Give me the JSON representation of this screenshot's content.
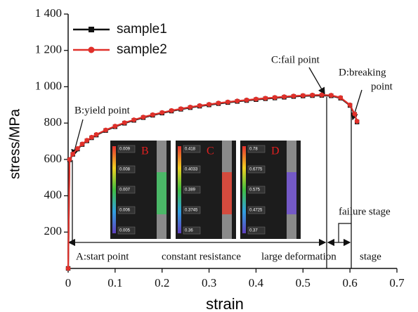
{
  "chart_data": {
    "type": "line",
    "xlabel": "strain",
    "ylabel": "stress/MPa",
    "xlim": [
      0,
      0.7
    ],
    "xticks": [
      0,
      0.1,
      0.2,
      0.3,
      0.4,
      0.5,
      0.6,
      0.7
    ],
    "ylim": [
      0,
      1400
    ],
    "yticks": [
      200,
      400,
      600,
      800,
      {
        "value": 1000,
        "label": "1 000"
      },
      {
        "value": 1200,
        "label": "1 200"
      },
      {
        "value": 1400,
        "label": "1 400"
      }
    ],
    "legend": "upper left",
    "x": [
      0,
      0.003,
      0.01,
      0.02,
      0.03,
      0.04,
      0.05,
      0.06,
      0.08,
      0.1,
      0.12,
      0.14,
      0.16,
      0.18,
      0.2,
      0.22,
      0.24,
      0.26,
      0.28,
      0.3,
      0.32,
      0.34,
      0.36,
      0.38,
      0.4,
      0.42,
      0.44,
      0.46,
      0.48,
      0.5,
      0.52,
      0.54,
      0.56,
      0.58,
      0.6,
      0.61,
      0.615
    ],
    "series": [
      {
        "name": "sample1",
        "color": "#111111",
        "marker": "square",
        "values": [
          0,
          598,
          628,
          657,
          682,
          702,
          719,
          734,
          759,
          780,
          799,
          815,
          830,
          843,
          855,
          866,
          876,
          885,
          893,
          900,
          907,
          913,
          919,
          924,
          929,
          934,
          938,
          942,
          946,
          949,
          951,
          952,
          950,
          937,
          897,
          848,
          806
        ]
      },
      {
        "name": "sample2",
        "color": "#e0302a",
        "marker": "circle",
        "values": [
          0,
          600,
          630,
          660,
          685,
          705,
          722,
          737,
          762,
          783,
          802,
          818,
          833,
          846,
          858,
          869,
          879,
          888,
          896,
          903,
          910,
          916,
          922,
          927,
          932,
          937,
          941,
          945,
          949,
          952,
          954,
          955,
          953,
          940,
          900,
          850,
          810
        ]
      }
    ],
    "annotations": [
      "B:yield point",
      "C:fail point",
      "D:breaking",
      "point",
      "A:start point",
      "constant resistance",
      "large deformation",
      "stage",
      "failure stage"
    ],
    "insets": [
      {
        "letter": "B",
        "labels": [
          "0.009",
          "0.008",
          "0.007",
          "0.006",
          "0.005"
        ]
      },
      {
        "letter": "C",
        "labels": [
          "0.418",
          "0.4033",
          "0.389",
          "0.3745",
          "0.36"
        ]
      },
      {
        "letter": "D",
        "labels": [
          "0.78",
          "0.6775",
          "0.575",
          "0.4725",
          "0.37"
        ]
      }
    ]
  }
}
